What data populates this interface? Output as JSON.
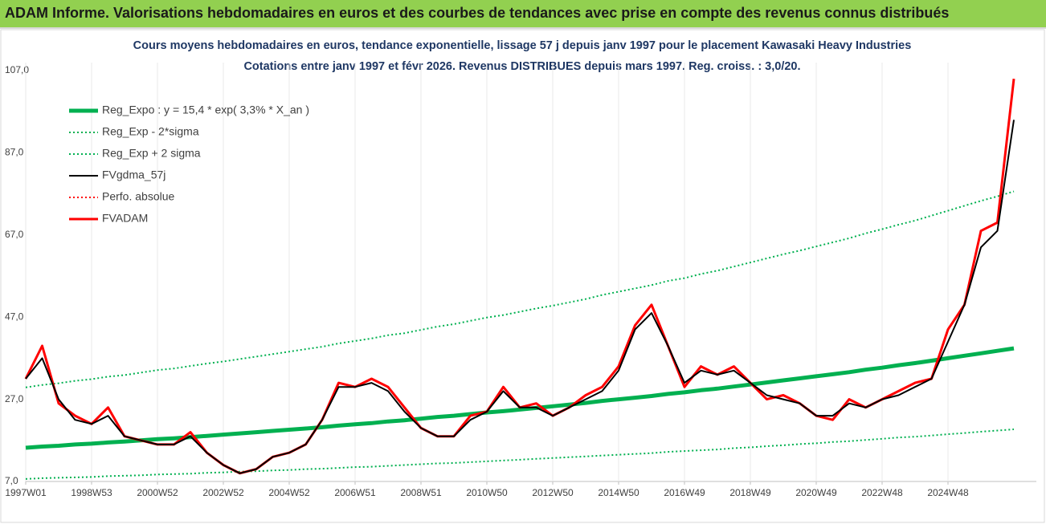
{
  "header": {
    "title": "ADAM Informe. Valorisations hebdomadaires en euros et des courbes de tendances avec prise en compte des revenus connus distribués"
  },
  "chart_data": {
    "type": "line",
    "title": "Cours moyens hebdomadaires en euros, tendance exponentielle, lissage 57 j depuis janv 1997 pour le placement Kawasaki Heavy Industries",
    "subtitle": "Cotations entre janv 1997 et févr 2026. Revenus DISTRIBUES depuis mars 1997. Reg. croiss. : 3,0/20.",
    "categories": [
      "1997W01",
      null,
      null,
      null,
      "1998W53",
      null,
      null,
      null,
      "2000W52",
      null,
      null,
      null,
      "2002W52",
      null,
      null,
      null,
      "2004W52",
      null,
      null,
      null,
      "2006W51",
      null,
      null,
      null,
      "2008W51",
      null,
      null,
      null,
      "2010W50",
      null,
      null,
      null,
      "2012W50",
      null,
      null,
      null,
      "2014W50",
      null,
      null,
      null,
      "2016W49",
      null,
      null,
      null,
      "2018W49",
      null,
      null,
      null,
      "2020W49",
      null,
      null,
      null,
      "2022W48",
      null,
      null,
      null,
      "2024W48",
      null,
      null,
      null,
      null
    ],
    "ylim": [
      7,
      107
    ],
    "yticks": [
      {
        "value": 7,
        "label": "7,0"
      },
      {
        "value": 27,
        "label": "27,0"
      },
      {
        "value": 47,
        "label": "47,0"
      },
      {
        "value": 67,
        "label": "67,0"
      },
      {
        "value": 87,
        "label": "87,0"
      },
      {
        "value": 107,
        "label": "107,0"
      }
    ],
    "grid": "x",
    "legend": "top-left",
    "series": [
      {
        "name": "Reg_Expo : y = 15,4 * exp( 3,3% *  X_an )",
        "color": "#00b050",
        "style": "thick",
        "values": [
          15.2,
          15.5,
          15.7,
          16.0,
          16.2,
          16.5,
          16.7,
          17.0,
          17.3,
          17.5,
          17.8,
          18.1,
          18.4,
          18.7,
          19.0,
          19.3,
          19.6,
          19.9,
          20.2,
          20.6,
          20.9,
          21.2,
          21.6,
          21.9,
          22.3,
          22.7,
          23.0,
          23.4,
          23.8,
          24.1,
          24.5,
          24.9,
          25.3,
          25.7,
          26.1,
          26.6,
          27.0,
          27.4,
          27.8,
          28.3,
          28.7,
          29.2,
          29.6,
          30.1,
          30.6,
          31.1,
          31.6,
          32.1,
          32.6,
          33.1,
          33.6,
          34.2,
          34.7,
          35.3,
          35.8,
          36.4,
          37.0,
          37.6,
          38.2,
          38.8,
          39.4
        ]
      },
      {
        "name": "Reg_Exp - 2*sigma",
        "color": "#00b050",
        "style": "dotted",
        "values": [
          7.6,
          7.8,
          7.9,
          8.0,
          8.1,
          8.3,
          8.4,
          8.5,
          8.7,
          8.8,
          8.9,
          9.1,
          9.2,
          9.4,
          9.5,
          9.7,
          9.8,
          10.0,
          10.1,
          10.3,
          10.5,
          10.6,
          10.8,
          11.0,
          11.2,
          11.4,
          11.5,
          11.7,
          11.9,
          12.1,
          12.3,
          12.5,
          12.7,
          12.9,
          13.1,
          13.3,
          13.5,
          13.7,
          13.9,
          14.2,
          14.4,
          14.6,
          14.8,
          15.1,
          15.3,
          15.6,
          15.8,
          16.1,
          16.3,
          16.6,
          16.8,
          17.1,
          17.4,
          17.7,
          17.9,
          18.2,
          18.5,
          18.8,
          19.1,
          19.4,
          19.7
        ]
      },
      {
        "name": "Reg_Exp + 2 sigma",
        "color": "#00b050",
        "style": "dotted",
        "values": [
          29.9,
          30.5,
          30.9,
          31.5,
          31.9,
          32.5,
          32.9,
          33.5,
          34.1,
          34.5,
          35.1,
          35.7,
          36.2,
          36.8,
          37.4,
          38.0,
          38.6,
          39.2,
          39.8,
          40.6,
          41.2,
          41.8,
          42.6,
          43.1,
          43.9,
          44.7,
          45.3,
          46.1,
          46.9,
          47.5,
          48.3,
          49.1,
          49.8,
          50.6,
          51.4,
          52.4,
          53.2,
          54.0,
          54.8,
          55.8,
          56.5,
          57.5,
          58.3,
          59.3,
          60.3,
          61.3,
          62.3,
          63.2,
          64.2,
          65.2,
          66.2,
          67.4,
          68.4,
          69.5,
          70.5,
          71.7,
          72.9,
          74.1,
          75.3,
          76.4,
          77.6
        ]
      },
      {
        "name": "FVgdma_57j",
        "color": "#000000",
        "style": "solid",
        "values": [
          32,
          37,
          27,
          22,
          21,
          23,
          18,
          17,
          16,
          16,
          18,
          14,
          11,
          9,
          10,
          13,
          14,
          16,
          22,
          30,
          30,
          31,
          29,
          24,
          20,
          18,
          18,
          22,
          24,
          29,
          25,
          25,
          23,
          25,
          27,
          29,
          34,
          44,
          48,
          40,
          31,
          34,
          33,
          34,
          31,
          28,
          27,
          26,
          23,
          23,
          26,
          25,
          27,
          28,
          30,
          32,
          41,
          50,
          64,
          68,
          95
        ]
      },
      {
        "name": "Perfo. absolue",
        "color": "#ff0000",
        "style": "dotted",
        "values": [
          32,
          40,
          26,
          23,
          21,
          25,
          18,
          17,
          16,
          16,
          19,
          14,
          11,
          9,
          10,
          13,
          14,
          16,
          22,
          31,
          30,
          32,
          30,
          25,
          20,
          18,
          18,
          23,
          24,
          30,
          25,
          26,
          23,
          25,
          28,
          30,
          35,
          45,
          50,
          40,
          30,
          35,
          33,
          35,
          31,
          27,
          28,
          26,
          23,
          22,
          27,
          25,
          27,
          29,
          31,
          32,
          44,
          50,
          68,
          70,
          105
        ]
      },
      {
        "name": "FVADAM",
        "color": "#ff0000",
        "style": "bold",
        "values": [
          32,
          40,
          26,
          23,
          21,
          25,
          18,
          17,
          16,
          16,
          19,
          14,
          11,
          9,
          10,
          13,
          14,
          16,
          22,
          31,
          30,
          32,
          30,
          25,
          20,
          18,
          18,
          23,
          24,
          30,
          25,
          26,
          23,
          25,
          28,
          30,
          35,
          45,
          50,
          40,
          30,
          35,
          33,
          35,
          31,
          27,
          28,
          26,
          23,
          22,
          27,
          25,
          27,
          29,
          31,
          32,
          44,
          50,
          68,
          70,
          105
        ]
      }
    ]
  }
}
